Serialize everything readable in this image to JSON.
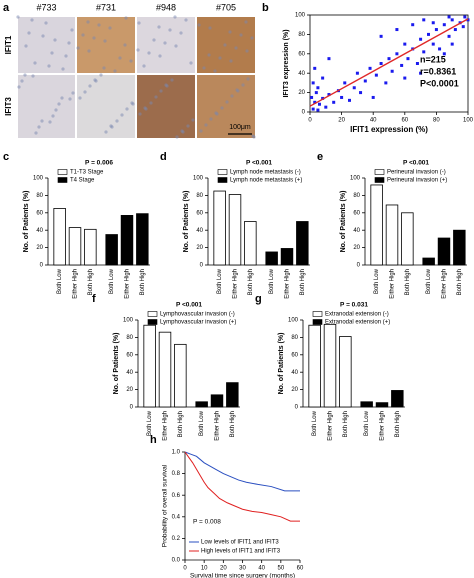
{
  "figure_a": {
    "panel": "a",
    "columns": [
      "#733",
      "#731",
      "#948",
      "#705"
    ],
    "rows": [
      "IFIT1",
      "IFIT3"
    ],
    "scale_bar": "100μm",
    "colors": [
      [
        "#d9d5dd",
        "#c9996a",
        "#dcd7de",
        "#b27c4c"
      ],
      [
        "#dad6dd",
        "#dcdadc",
        "#9c6c4c",
        "#ba885c"
      ]
    ]
  },
  "chart_data": [
    {
      "panel": "b",
      "type": "scatter",
      "xlabel": "IFIT1 expression (%)",
      "ylabel": "IFIT3 expression (%)",
      "annotations": [
        "n=215",
        "r=0.8361",
        "P<0.0001"
      ],
      "color": "#1a1aee",
      "x": [
        2,
        3,
        5,
        1,
        4,
        6,
        8,
        10,
        2,
        5,
        12,
        15,
        8,
        18,
        20,
        22,
        25,
        3,
        28,
        30,
        32,
        35,
        38,
        40,
        42,
        45,
        48,
        50,
        52,
        55,
        58,
        60,
        62,
        65,
        68,
        70,
        72,
        75,
        78,
        80,
        82,
        85,
        88,
        90,
        92,
        95,
        97,
        98,
        100,
        65,
        55,
        72,
        45,
        85,
        78,
        90,
        60,
        12,
        88,
        70
      ],
      "values": [
        3,
        10,
        2,
        15,
        20,
        8,
        14,
        5,
        30,
        25,
        18,
        10,
        35,
        22,
        15,
        30,
        12,
        45,
        25,
        40,
        20,
        32,
        45,
        15,
        38,
        50,
        30,
        55,
        42,
        60,
        48,
        70,
        55,
        65,
        50,
        75,
        62,
        80,
        70,
        85,
        65,
        90,
        78,
        95,
        85,
        92,
        88,
        98,
        95,
        90,
        85,
        95,
        78,
        60,
        92,
        70,
        35,
        55,
        98,
        40
      ],
      "trend_line": {
        "color": "#e02828",
        "x": [
          0,
          100
        ],
        "y": [
          6,
          96
        ]
      },
      "xlim": [
        0,
        100
      ],
      "xticks": [
        0,
        20,
        40,
        60,
        80,
        100
      ],
      "ylim": [
        0,
        100
      ],
      "yticks": [
        0,
        20,
        40,
        60,
        80,
        100
      ]
    },
    {
      "panel": "c",
      "type": "bar",
      "title": "P = 0.006",
      "ylabel": "No. of Patients (%)",
      "categories": [
        "Both Low",
        "Either High",
        "Both High",
        "Both Low",
        "Either High",
        "Both High"
      ],
      "series": [
        {
          "name": "T1-T3 Stage",
          "color": "#ffffff",
          "values": [
            65,
            43,
            41,
            null,
            null,
            null
          ]
        },
        {
          "name": "T4 Stage",
          "color": "#000000",
          "values": [
            null,
            null,
            null,
            35,
            57,
            59
          ]
        }
      ],
      "ylim": [
        0,
        100
      ],
      "yticks": [
        0,
        20,
        40,
        60,
        80,
        100
      ]
    },
    {
      "panel": "d",
      "type": "bar",
      "title": "P <0.001",
      "ylabel": "No. of Patients (%)",
      "categories": [
        "Both Low",
        "Either High",
        "Both High",
        "Both Low",
        "Either High",
        "Both High"
      ],
      "series": [
        {
          "name": "Lymph node metastasis (-)",
          "color": "#ffffff",
          "values": [
            85,
            81,
            50,
            null,
            null,
            null
          ]
        },
        {
          "name": "Lymph node metastasis (+)",
          "color": "#000000",
          "values": [
            null,
            null,
            null,
            15,
            19,
            50
          ]
        }
      ],
      "ylim": [
        0,
        100
      ],
      "yticks": [
        0,
        20,
        40,
        60,
        80,
        100
      ]
    },
    {
      "panel": "e",
      "type": "bar",
      "title": "P <0.001",
      "ylabel": "No. of Patients (%)",
      "categories": [
        "Both Low",
        "Either High",
        "Both High",
        "Both Low",
        "Either High",
        "Both High"
      ],
      "series": [
        {
          "name": "Perineural invasion (-)",
          "color": "#ffffff",
          "values": [
            92,
            69,
            60,
            null,
            null,
            null
          ]
        },
        {
          "name": "Perineural invasion (+)",
          "color": "#000000",
          "values": [
            null,
            null,
            null,
            8,
            31,
            40
          ]
        }
      ],
      "ylim": [
        0,
        100
      ],
      "yticks": [
        0,
        20,
        40,
        60,
        80,
        100
      ]
    },
    {
      "panel": "f",
      "type": "bar",
      "title": "P <0.001",
      "ylabel": "No. of Patients (%)",
      "categories": [
        "Both Low",
        "Either High",
        "Both High",
        "Both Low",
        "Either High",
        "Both High"
      ],
      "series": [
        {
          "name": "Lymphovascular invasion (-)",
          "color": "#ffffff",
          "values": [
            94,
            86,
            72,
            null,
            null,
            null
          ]
        },
        {
          "name": "Lymphovascular invasion (+)",
          "color": "#000000",
          "values": [
            null,
            null,
            null,
            6,
            14,
            28
          ]
        }
      ],
      "ylim": [
        0,
        100
      ],
      "yticks": [
        0,
        20,
        40,
        60,
        80,
        100
      ]
    },
    {
      "panel": "g",
      "type": "bar",
      "title": "P = 0.031",
      "ylabel": "No. of Patients (%)",
      "categories": [
        "Both Low",
        "Either High",
        "Both High",
        "Both Low",
        "Either High",
        "Both High"
      ],
      "series": [
        {
          "name": "Extranodal extension (-)",
          "color": "#ffffff",
          "values": [
            94,
            95,
            81,
            null,
            null,
            null
          ]
        },
        {
          "name": "Extranodal extension (+)",
          "color": "#000000",
          "values": [
            null,
            null,
            null,
            6,
            5,
            19
          ]
        }
      ],
      "ylim": [
        0,
        100
      ],
      "yticks": [
        0,
        20,
        40,
        60,
        80,
        100
      ]
    },
    {
      "panel": "h",
      "type": "line",
      "xlabel": "Survival time since surgery (months)",
      "ylabel": "Probability of overall survival",
      "annotations": [
        "P = 0.008"
      ],
      "series": [
        {
          "name": "Low levels of IFIT1 and IFIT3",
          "color": "#2a4fc0",
          "x": [
            0,
            3,
            6,
            8,
            10,
            13,
            16,
            20,
            24,
            28,
            32,
            38,
            45,
            52,
            60
          ],
          "values": [
            1,
            0.98,
            0.96,
            0.93,
            0.9,
            0.87,
            0.84,
            0.8,
            0.77,
            0.74,
            0.72,
            0.7,
            0.68,
            0.64,
            0.64
          ]
        },
        {
          "name": "High levels of IFIT1 and IFIT3",
          "color": "#e02020",
          "x": [
            0,
            2,
            4,
            6,
            8,
            10,
            12,
            15,
            18,
            22,
            26,
            30,
            35,
            40,
            45,
            50,
            55,
            60
          ],
          "values": [
            1,
            0.95,
            0.9,
            0.84,
            0.78,
            0.72,
            0.67,
            0.62,
            0.57,
            0.53,
            0.5,
            0.47,
            0.45,
            0.44,
            0.42,
            0.4,
            0.36,
            0.36
          ]
        }
      ],
      "xlim": [
        0,
        60
      ],
      "xticks": [
        0,
        10,
        20,
        30,
        40,
        50,
        60
      ],
      "ylim": [
        0,
        1
      ],
      "yticks": [
        {
          "value": 0,
          "label": "0.0"
        },
        0.2,
        0.4,
        0.6,
        0.8,
        {
          "value": 1,
          "label": "1.0"
        }
      ]
    }
  ]
}
